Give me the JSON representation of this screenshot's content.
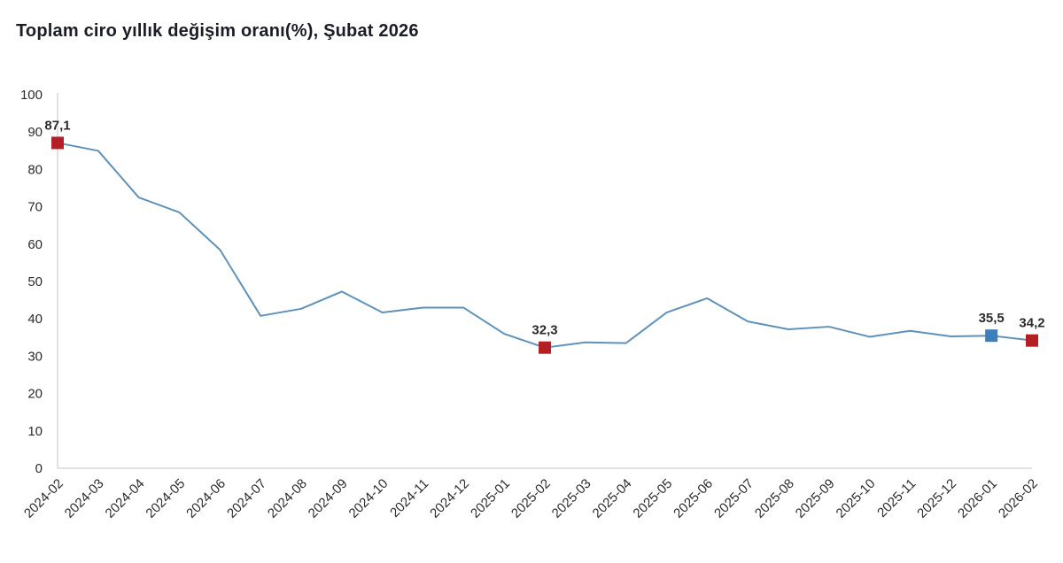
{
  "page": {
    "title": "Toplam ciro yıllık değişim oranı(%), Şubat 2026"
  },
  "chart_data": {
    "type": "line",
    "title": "Toplam ciro yıllık değişim oranı(%), Şubat 2026",
    "xlabel": "",
    "ylabel": "",
    "ylim": [
      0,
      100
    ],
    "ytick_step": 10,
    "grid": false,
    "legend": "none",
    "line_color": "#5e92ba",
    "axis_color": "#d9d9d9",
    "tick_text_color": "#2b2b2b",
    "data_label_color": "#111111",
    "categories": [
      "2024-02",
      "2024-03",
      "2024-04",
      "2024-05",
      "2024-06",
      "2024-07",
      "2024-08",
      "2024-09",
      "2024-10",
      "2024-11",
      "2024-12",
      "2025-01",
      "2025-02",
      "2025-03",
      "2025-04",
      "2025-05",
      "2025-06",
      "2025-07",
      "2025-08",
      "2025-09",
      "2025-10",
      "2025-11",
      "2025-12",
      "2026-01",
      "2026-02"
    ],
    "values": [
      87.1,
      85.0,
      72.5,
      68.5,
      58.5,
      40.8,
      42.7,
      47.3,
      41.7,
      43.0,
      43.0,
      36.0,
      32.3,
      33.7,
      33.5,
      41.7,
      45.5,
      39.3,
      37.2,
      37.9,
      35.2,
      36.8,
      35.3,
      35.5,
      34.2
    ],
    "highlighted_points": [
      {
        "category": "2024-02",
        "index": 0,
        "label": "87,1",
        "marker_color": "#b41f24"
      },
      {
        "category": "2025-02",
        "index": 12,
        "label": "32,3",
        "marker_color": "#b41f24"
      },
      {
        "category": "2026-01",
        "index": 23,
        "label": "35,5",
        "marker_color": "#3d7ebd"
      },
      {
        "category": "2026-02",
        "index": 24,
        "label": "34,2",
        "marker_color": "#b41f24"
      }
    ]
  }
}
